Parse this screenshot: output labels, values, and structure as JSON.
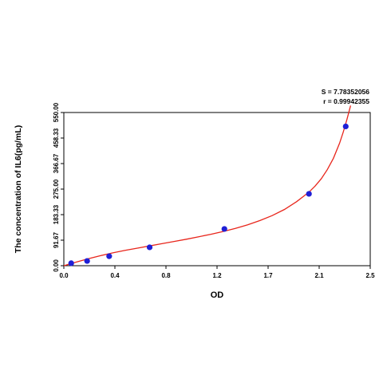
{
  "chart_data": {
    "type": "scatter",
    "title": "",
    "xlabel": "OD",
    "ylabel": "The concentration of IL6(pg/mL)",
    "xlim": [
      0.0,
      2.5
    ],
    "ylim": [
      0.0,
      550.0
    ],
    "x_ticks": [
      "0.0",
      "0.4",
      "0.8",
      "1.2",
      "1.7",
      "2.1",
      "2.5"
    ],
    "y_ticks": [
      "0.00",
      "91.67",
      "183.33",
      "275.00",
      "366.67",
      "458.33",
      "550.00"
    ],
    "grid": false,
    "series": [
      {
        "marker": "circle",
        "color": "#1f1fd6",
        "x": [
          0.06,
          0.19,
          0.37,
          0.7,
          1.31,
          2.0,
          2.3
        ],
        "y": [
          9,
          17,
          34,
          66,
          132,
          258,
          500
        ]
      }
    ],
    "fit_curve": {
      "color": "#e8261c",
      "x": [
        0.0,
        0.1,
        0.2,
        0.3,
        0.4,
        0.5,
        0.6,
        0.7,
        0.8,
        0.9,
        1.0,
        1.1,
        1.2,
        1.3,
        1.4,
        1.5,
        1.6,
        1.7,
        1.8,
        1.9,
        2.0,
        2.05,
        2.1,
        2.15,
        2.2,
        2.25,
        2.28,
        2.31,
        2.34
      ],
      "y": [
        0,
        13,
        25,
        36,
        46,
        55,
        63,
        71,
        79,
        87,
        95,
        104,
        113,
        123,
        134,
        147,
        162,
        180,
        202,
        230,
        264,
        286,
        312,
        345,
        386,
        440,
        480,
        525,
        575
      ]
    },
    "annotations": [
      "S = 7.78352056",
      "r = 0.99942355"
    ]
  }
}
